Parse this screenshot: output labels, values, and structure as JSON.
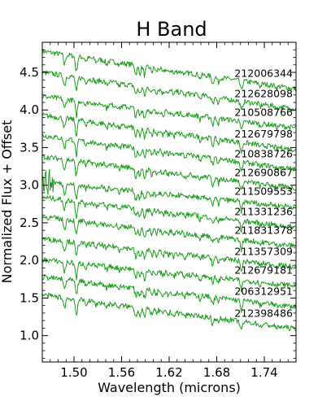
{
  "chart_data": {
    "type": "line",
    "title": "H Band",
    "xlabel": "Wavelength (microns)",
    "ylabel": "Normalized Flux + Offset",
    "xlim": [
      1.46,
      1.78
    ],
    "ylim": [
      0.65,
      4.9
    ],
    "x_ticks": [
      1.5,
      1.56,
      1.62,
      1.68,
      1.74
    ],
    "x_tick_labels": [
      "1.50",
      "1.56",
      "1.62",
      "1.68",
      "1.74"
    ],
    "y_ticks": [
      1.0,
      1.5,
      2.0,
      2.5,
      3.0,
      3.5,
      4.0,
      4.5
    ],
    "y_tick_labels": [
      "1.0",
      "1.5",
      "2.0",
      "2.5",
      "3.0",
      "3.5",
      "4.0",
      "4.5"
    ],
    "line_color": "#1a9e1a",
    "grid": false,
    "series": [
      {
        "name": "212006344",
        "start": 4.78,
        "end": 4.28
      },
      {
        "name": "212628098",
        "start": 4.5,
        "end": 4.01
      },
      {
        "name": "210508766",
        "start": 4.18,
        "end": 3.76
      },
      {
        "name": "212679798",
        "start": 3.93,
        "end": 3.47
      },
      {
        "name": "210838726",
        "start": 3.66,
        "end": 3.21
      },
      {
        "name": "212690867",
        "start": 3.38,
        "end": 2.96
      },
      {
        "name": "211509553",
        "start": 3.05,
        "end": 2.71
      },
      {
        "name": "211331236",
        "start": 2.84,
        "end": 2.44
      },
      {
        "name": "211831378",
        "start": 2.58,
        "end": 2.19
      },
      {
        "name": "211357309",
        "start": 2.29,
        "end": 1.91
      },
      {
        "name": "212679181",
        "start": 2.01,
        "end": 1.66
      },
      {
        "name": "206312951",
        "start": 1.78,
        "end": 1.38
      },
      {
        "name": "212398486",
        "start": 1.54,
        "end": 1.09
      }
    ]
  }
}
